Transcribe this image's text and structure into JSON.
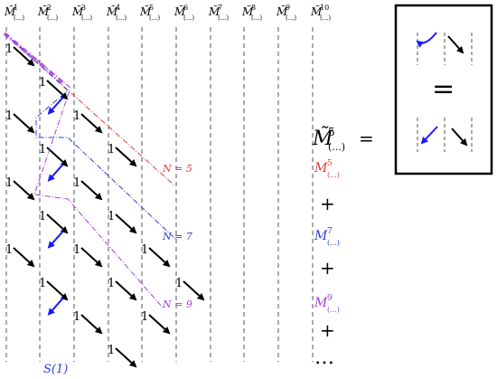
{
  "columns": {
    "base": "M̃",
    "sub": "(...)",
    "sups": [
      "1",
      "2",
      "3",
      "4",
      "5",
      "6",
      "7",
      "8",
      "9",
      "10"
    ]
  },
  "one_label": "1",
  "lhs": {
    "base": "M̃",
    "sup": "5",
    "sub": "(...)",
    "eq": "="
  },
  "terms": [
    {
      "base": "M",
      "sup": "5",
      "sub": "(...)",
      "color": "#e53935"
    },
    {
      "base": "M",
      "sup": "7",
      "sub": "(...)",
      "color": "#2b3fd6"
    },
    {
      "base": "M",
      "sup": "9",
      "sub": "(...)",
      "color": "#a33ddb"
    }
  ],
  "plus": "+",
  "ellipsis": "…",
  "n_labels": [
    {
      "text": "N = 5",
      "color": "#e53935"
    },
    {
      "text": "N = 7",
      "color": "#2b3fd6"
    },
    {
      "text": "N = 9",
      "color": "#a33ddb"
    }
  ],
  "bottom_label": "S(1)",
  "bottom_label_color": "#2b3fd6",
  "inset_equals": "=",
  "colors": {
    "black": "#000000",
    "blue": "#1a1aff",
    "red": "#e53935",
    "navy": "#2b3fd6",
    "purple": "#a33ddb",
    "dash": "#555555"
  }
}
